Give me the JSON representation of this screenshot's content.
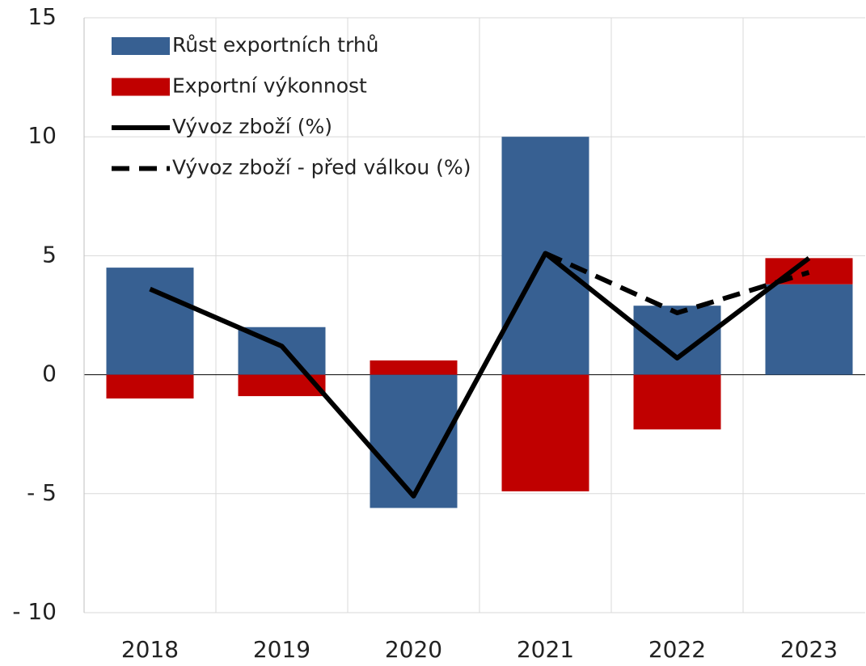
{
  "chart_data": {
    "type": "bar",
    "stacked": true,
    "categories": [
      "2018",
      "2019",
      "2020",
      "2021",
      "2022",
      "2023"
    ],
    "series": [
      {
        "name": "Růst exportních trhů",
        "type": "bar",
        "color": "#376092",
        "values": [
          4.5,
          2.0,
          -5.6,
          10.0,
          2.9,
          3.8
        ]
      },
      {
        "name": "Exportní výkonnost",
        "type": "bar",
        "color": "#c00000",
        "values": [
          -1.0,
          -0.9,
          0.6,
          -4.9,
          -2.3,
          1.1
        ]
      },
      {
        "name": "Vývoz zboží (%)",
        "type": "line",
        "color": "#000000",
        "dashed": false,
        "values": [
          3.6,
          1.2,
          -5.1,
          5.1,
          0.7,
          4.9
        ]
      },
      {
        "name": "Vývoz zboží - před válkou (%)",
        "type": "line",
        "color": "#000000",
        "dashed": true,
        "values": [
          null,
          null,
          null,
          5.1,
          2.6,
          4.3
        ]
      }
    ],
    "ylim": [
      -10,
      15
    ],
    "yticks": [
      {
        "value": -10,
        "label": "- 10"
      },
      {
        "value": -5,
        "label": "- 5"
      },
      0,
      5,
      10,
      15
    ],
    "grid": true,
    "legend": "upper left"
  }
}
